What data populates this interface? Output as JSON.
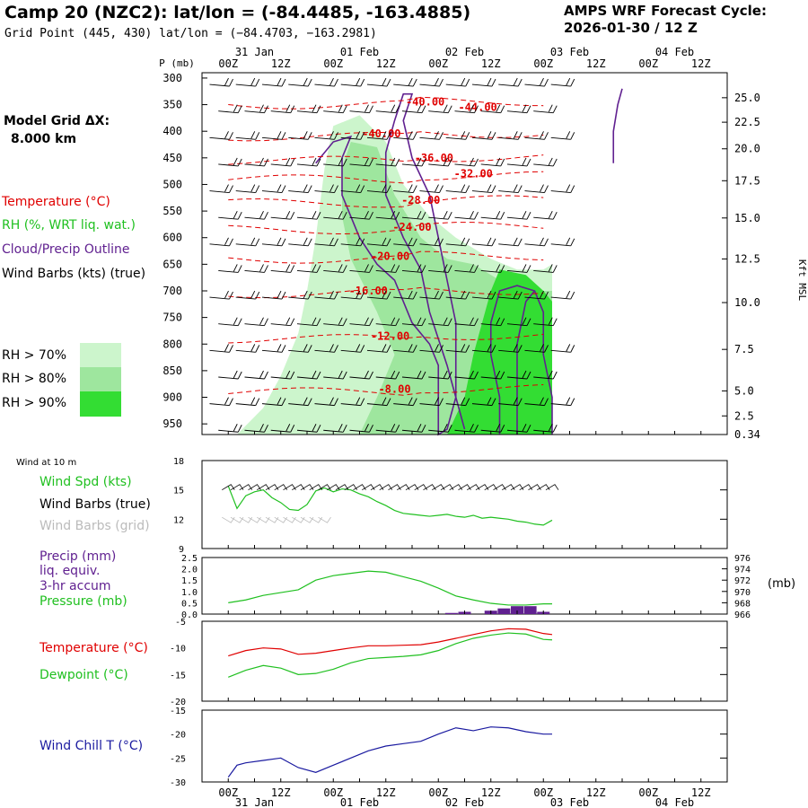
{
  "header": {
    "title": "Camp 20 (NZC2):  lat/lon = (-84.4485, -163.4885)",
    "grid_point": "Grid Point (445, 430) lat/lon = (−84.4703, −163.2981)",
    "cycle_line1": "AMPS WRF Forecast Cycle:",
    "cycle_line2": "2026-01-30 / 12  Z",
    "model_grid_label": "Model Grid ΔX:",
    "model_grid_value": "8.000 km"
  },
  "legend": {
    "temperature": "Temperature (°C)",
    "rh": "RH (%, WRT liq. wat.)",
    "cloud": "Cloud/Precip Outline",
    "wind": "Wind Barbs (kts) (true)",
    "rh70": "RH > 70%",
    "rh80": "RH > 80%",
    "rh90": "RH > 90%"
  },
  "time_axis": {
    "hours": [
      "00Z",
      "12Z",
      "00Z",
      "12Z",
      "00Z",
      "12Z",
      "00Z",
      "12Z",
      "00Z",
      "12Z"
    ],
    "dates": [
      "31 Jan",
      "01 Feb",
      "02 Feb",
      "03 Feb",
      "04 Feb"
    ],
    "top_title_p": "P (mb)",
    "right_title": "Kft MSL"
  },
  "colors": {
    "temperature": "#e00000",
    "green": "#20c020",
    "purple": "#602090",
    "blue": "#1a1aa0",
    "rh70": "#ccf5cc",
    "rh80": "#9ee69e",
    "rh90": "#33dd33",
    "grey": "#bbbbbb"
  },
  "chart_data": [
    {
      "type": "heatmap",
      "name": "sounding-cross-section",
      "x_hours": [
        0,
        6,
        12,
        18,
        24,
        30,
        36,
        42,
        48,
        54,
        60,
        66,
        72,
        78,
        84,
        90,
        96
      ],
      "pressure_levels": [
        300,
        350,
        400,
        450,
        500,
        550,
        600,
        650,
        700,
        750,
        800,
        850,
        900,
        950
      ],
      "kft_ticks": [
        "25.0",
        "22.5",
        "20.0",
        "17.5",
        "15.0",
        "12.5",
        "10.0",
        "7.5",
        "5.0",
        "2.5",
        "0.34"
      ],
      "kft_pressures": [
        337,
        383,
        433,
        493,
        563,
        640,
        722,
        810,
        888,
        935,
        970
      ],
      "temperature_labels": [
        {
          "text": "-40.00",
          "hour": 45,
          "p": 345
        },
        {
          "text": "-44.00",
          "hour": 57,
          "p": 355
        },
        {
          "text": "-40.00",
          "hour": 35,
          "p": 405
        },
        {
          "text": "-36.00",
          "hour": 47,
          "p": 450
        },
        {
          "text": "-32.00",
          "hour": 56,
          "p": 480
        },
        {
          "text": "-28.00",
          "hour": 44,
          "p": 530
        },
        {
          "text": "-24.00",
          "hour": 42,
          "p": 580
        },
        {
          "text": "-20.00",
          "hour": 37,
          "p": 635
        },
        {
          "text": "-16.00",
          "hour": 32,
          "p": 700
        },
        {
          "text": "-12.00",
          "hour": 37,
          "p": 785
        },
        {
          "text": "-8.00",
          "hour": 38,
          "p": 885
        }
      ]
    },
    {
      "type": "line",
      "name": "wind-10m",
      "title": "Wind at 10 m",
      "ylim": [
        9,
        18
      ],
      "yticks": [
        "18",
        "15",
        "12",
        "9"
      ],
      "series_labels": [
        "Wind Spd (kts)",
        "Wind Barbs (true)",
        "Wind Barbs (grid)"
      ],
      "x": [
        0,
        2,
        4,
        6,
        8,
        10,
        12,
        14,
        16,
        18,
        20,
        22,
        24,
        26,
        28,
        30,
        32,
        34,
        36,
        38,
        40,
        42,
        44,
        46,
        48,
        50,
        52,
        54,
        56,
        58,
        60,
        62,
        64,
        66,
        68,
        70,
        72,
        74
      ],
      "values": [
        15.4,
        13.1,
        14.4,
        14.8,
        15.0,
        14.2,
        13.7,
        13.0,
        12.9,
        13.5,
        14.9,
        15.2,
        14.8,
        15.1,
        15.0,
        14.6,
        14.3,
        13.8,
        13.4,
        12.9,
        12.6,
        12.5,
        12.4,
        12.3,
        12.4,
        12.5,
        12.3,
        12.2,
        12.4,
        12.1,
        12.2,
        12.1,
        12.0,
        11.8,
        11.7,
        11.5,
        11.4,
        11.9
      ]
    },
    {
      "type": "line",
      "name": "precip-pressure",
      "series_labels": [
        "Precip (mm)",
        "liq. equiv.",
        "3-hr accum",
        "Pressure (mb)"
      ],
      "left_ticks": [
        "2.5",
        "2.0",
        "1.5",
        "1.0",
        "0.5",
        "0.0"
      ],
      "right_ticks": [
        "976",
        "974",
        "972",
        "970",
        "968",
        "966"
      ],
      "right_unit": "(mb)",
      "left_lim": [
        0,
        2.5
      ],
      "right_lim": [
        966,
        976
      ],
      "pressure_x": [
        0,
        4,
        8,
        12,
        16,
        20,
        24,
        28,
        32,
        36,
        40,
        44,
        48,
        52,
        56,
        60,
        64,
        68,
        72,
        74
      ],
      "pressure_values": [
        968.0,
        968.5,
        969.3,
        969.8,
        970.3,
        972.0,
        972.8,
        973.2,
        973.6,
        973.4,
        972.6,
        971.8,
        970.6,
        969.2,
        968.5,
        967.9,
        967.6,
        967.6,
        967.8,
        967.8
      ],
      "precip_x": [
        48,
        51,
        54,
        57,
        60,
        63,
        66,
        69,
        72
      ],
      "precip_values": [
        0.0,
        0.05,
        0.1,
        0.0,
        0.15,
        0.25,
        0.35,
        0.35,
        0.1
      ]
    },
    {
      "type": "line",
      "name": "temperature-dewpoint",
      "series_labels": [
        "Temperature (°C)",
        "Dewpoint (°C)"
      ],
      "yticks": [
        "-5",
        "-10",
        "-15",
        "-20"
      ],
      "ylim": [
        -20,
        -5
      ],
      "x": [
        0,
        4,
        8,
        12,
        16,
        20,
        24,
        28,
        32,
        36,
        40,
        44,
        48,
        52,
        56,
        60,
        64,
        68,
        72,
        74
      ],
      "temperature": [
        -11.5,
        -10.5,
        -10.0,
        -10.2,
        -11.2,
        -11.0,
        -10.5,
        -10.0,
        -9.6,
        -9.6,
        -9.5,
        -9.4,
        -8.9,
        -8.2,
        -7.5,
        -6.8,
        -6.4,
        -6.5,
        -7.3,
        -7.5
      ],
      "dewpoint": [
        -15.5,
        -14.2,
        -13.3,
        -13.8,
        -15.0,
        -14.8,
        -14.0,
        -12.8,
        -12.0,
        -11.8,
        -11.6,
        -11.3,
        -10.5,
        -9.2,
        -8.2,
        -7.6,
        -7.2,
        -7.4,
        -8.4,
        -8.5
      ]
    },
    {
      "type": "line",
      "name": "wind-chill",
      "series_labels": [
        "Wind Chill T (°C)"
      ],
      "yticks": [
        "-15",
        "-20",
        "-25",
        "-30"
      ],
      "ylim": [
        -30,
        -15
      ],
      "x": [
        0,
        2,
        4,
        8,
        12,
        16,
        20,
        24,
        28,
        32,
        36,
        40,
        44,
        48,
        52,
        56,
        60,
        64,
        68,
        72,
        74
      ],
      "values": [
        -29.0,
        -26.5,
        -26.0,
        -25.5,
        -25.0,
        -27.0,
        -28.0,
        -26.5,
        -25.0,
        -23.5,
        -22.5,
        -22.0,
        -21.5,
        -20.0,
        -18.7,
        -19.3,
        -18.5,
        -18.7,
        -19.5,
        -20.0,
        -20.0
      ]
    }
  ]
}
